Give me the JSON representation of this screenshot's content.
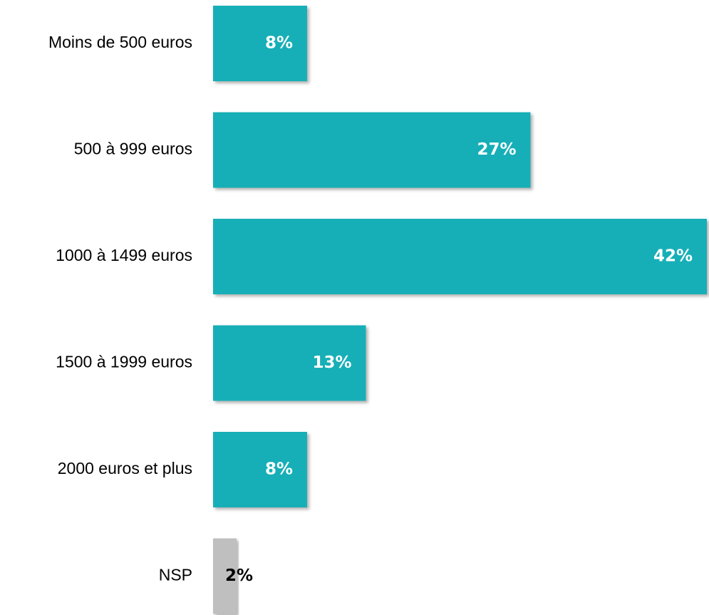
{
  "chart_data": {
    "type": "hbar",
    "categories": [
      "Moins de 500 euros",
      "500 à 999 euros",
      "1000 à 1499 euros",
      "1500 à 1999 euros",
      "2000 euros et plus",
      "NSP"
    ],
    "values": [
      8,
      27,
      42,
      13,
      8,
      2
    ],
    "value_labels": [
      "8%",
      "27%",
      "42%",
      "13%",
      "8%",
      "2%"
    ],
    "colors": [
      "#14afb7",
      "#14afb7",
      "#14afb7",
      "#14afb7",
      "#14afb7",
      "#bfbfbf"
    ]
  }
}
